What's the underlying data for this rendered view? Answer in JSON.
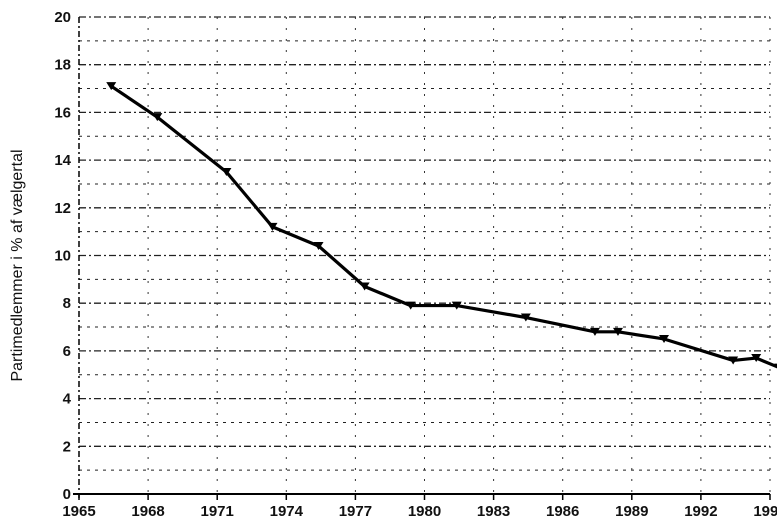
{
  "chart_data": {
    "type": "line",
    "title": "",
    "xlabel": "",
    "ylabel": "Partimedlemmer i % af vælgertal",
    "xlim": [
      1965,
      1995
    ],
    "ylim": [
      0,
      20
    ],
    "x_ticks": [
      "1965",
      "1968",
      "1971",
      "1974",
      "1977",
      "1980",
      "1983",
      "1986",
      "1989",
      "1992",
      "1995"
    ],
    "y_ticks": [
      "0",
      "2",
      "4",
      "6",
      "8",
      "10",
      "12",
      "14",
      "16",
      "18",
      "20"
    ],
    "grid": true,
    "grid_style": "dashed",
    "series": [
      {
        "x": [
          1966.4,
          1968.4,
          1971.4,
          1973.4,
          1975.4,
          1977.4,
          1979.4,
          1981.4,
          1984.4,
          1987.4,
          1988.4,
          1990.4,
          1993.4,
          1994.4,
          1995.4
        ],
        "y": [
          17.1,
          15.8,
          13.5,
          11.2,
          10.4,
          8.7,
          7.9,
          7.9,
          7.4,
          6.8,
          6.8,
          6.5,
          5.6,
          5.7,
          5.3
        ],
        "marker": "triangle-down",
        "color": "#000000"
      }
    ]
  }
}
